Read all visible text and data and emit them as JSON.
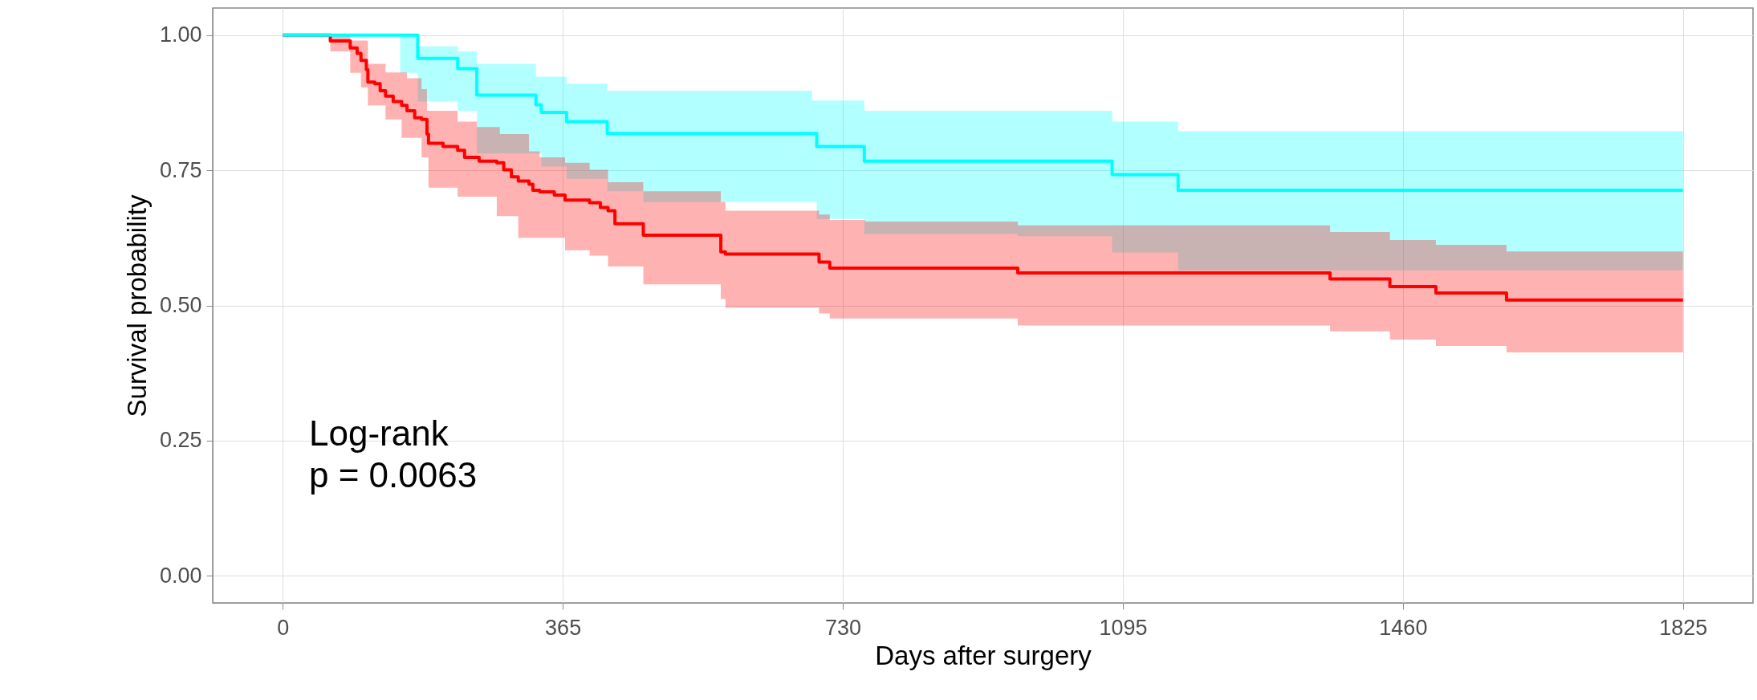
{
  "chart_data": {
    "type": "step",
    "xlabel": "Days after surgery",
    "ylabel": "Survival probability",
    "xlim": [
      -91.25,
      1916.25
    ],
    "xticks": [
      0,
      365,
      730,
      1095,
      1460,
      1825
    ],
    "ylim": [
      -0.05,
      1.05
    ],
    "yticks": [
      {
        "value": 0,
        "label": "0.00"
      },
      {
        "value": 0.25,
        "label": "0.25"
      },
      {
        "value": 0.5,
        "label": "0.50"
      },
      {
        "value": 0.75,
        "label": "0.75"
      },
      {
        "value": 1,
        "label": "1.00"
      }
    ],
    "grid": true,
    "annotations": [
      "Log-rank\np = 0.0063"
    ],
    "series": [
      {
        "color": "#00ffff",
        "x": [
          0,
          153,
          176,
          228,
          253,
          330,
          337,
          370,
          423,
          470,
          690,
          696,
          758,
          958,
          1081,
          1167,
          1825
        ],
        "values": [
          1,
          1,
          0.957,
          0.938,
          0.889,
          0.871,
          0.857,
          0.84,
          0.818,
          0.818,
          0.818,
          0.794,
          0.767,
          0.767,
          0.742,
          0.713,
          0.713
        ],
        "lower": [
          1,
          0.93,
          0.877,
          0.86,
          0.781,
          0.781,
          0.757,
          0.734,
          0.711,
          0.691,
          0.691,
          0.66,
          0.632,
          0.628,
          0.598,
          0.565,
          0.565
        ],
        "upper": [
          1,
          1,
          0.979,
          0.97,
          0.947,
          0.923,
          0.923,
          0.91,
          0.897,
          0.897,
          0.879,
          0.879,
          0.86,
          0.86,
          0.84,
          0.822,
          0.822
        ]
      },
      {
        "color": "#ff0000",
        "x": [
          0,
          62,
          88,
          97,
          102,
          109,
          111,
          120,
          127,
          134,
          144,
          155,
          162,
          172,
          181,
          188,
          190,
          209,
          228,
          237,
          253,
          256,
          279,
          283,
          288,
          298,
          307,
          321,
          326,
          335,
          354,
          368,
          400,
          414,
          424,
          433,
          470,
          571,
          577,
          699,
          713,
          759,
          958,
          1365,
          1443,
          1503,
          1595,
          1825
        ],
        "values": [
          1,
          0.989,
          0.976,
          0.966,
          0.953,
          0.936,
          0.913,
          0.91,
          0.897,
          0.887,
          0.877,
          0.87,
          0.86,
          0.847,
          0.844,
          0.817,
          0.8,
          0.794,
          0.787,
          0.774,
          0.774,
          0.767,
          0.764,
          0.764,
          0.751,
          0.738,
          0.73,
          0.724,
          0.713,
          0.71,
          0.704,
          0.695,
          0.69,
          0.681,
          0.675,
          0.651,
          0.63,
          0.599,
          0.595,
          0.58,
          0.569,
          0.569,
          0.56,
          0.549,
          0.535,
          0.523,
          0.51,
          0.51
        ],
        "lower": [
          1,
          0.97,
          0.93,
          0.93,
          0.903,
          0.903,
          0.87,
          0.87,
          0.87,
          0.844,
          0.844,
          0.81,
          0.81,
          0.81,
          0.774,
          0.774,
          0.718,
          0.718,
          0.701,
          0.701,
          0.701,
          0.701,
          0.665,
          0.665,
          0.665,
          0.665,
          0.625,
          0.625,
          0.625,
          0.625,
          0.625,
          0.602,
          0.592,
          0.592,
          0.572,
          0.572,
          0.539,
          0.512,
          0.496,
          0.485,
          0.476,
          0.476,
          0.463,
          0.452,
          0.437,
          0.425,
          0.413,
          0.413
        ],
        "upper": [
          1,
          1,
          0.99,
          0.99,
          0.99,
          0.99,
          0.947,
          0.947,
          0.947,
          0.931,
          0.931,
          0.931,
          0.92,
          0.92,
          0.9,
          0.86,
          0.86,
          0.86,
          0.84,
          0.84,
          0.83,
          0.83,
          0.83,
          0.817,
          0.817,
          0.817,
          0.817,
          0.785,
          0.785,
          0.774,
          0.774,
          0.764,
          0.751,
          0.751,
          0.728,
          0.728,
          0.711,
          0.691,
          0.675,
          0.668,
          0.658,
          0.655,
          0.648,
          0.636,
          0.621,
          0.612,
          0.6,
          0.6
        ]
      }
    ]
  }
}
